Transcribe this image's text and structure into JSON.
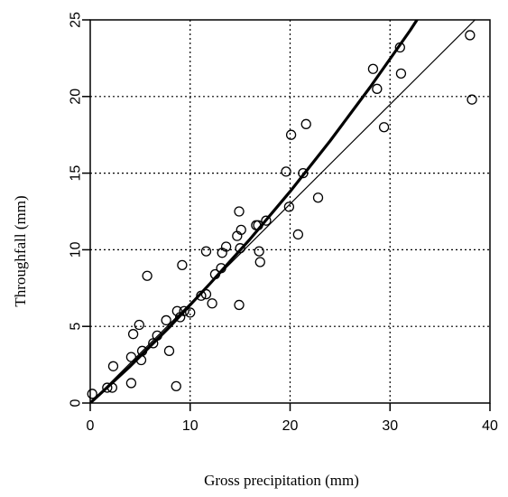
{
  "chart_data": {
    "type": "scatter",
    "xlabel": "Gross precipitation (mm)",
    "ylabel": "Throughfall (mm)",
    "xlim": [
      0,
      40
    ],
    "ylim": [
      0,
      25
    ],
    "x_ticks": [
      0,
      10,
      20,
      30,
      40
    ],
    "y_ticks": [
      0,
      5,
      10,
      15,
      20,
      25
    ],
    "x_tick_labels": [
      "0",
      "10",
      "20",
      "30",
      "40"
    ],
    "y_tick_labels": [
      "0",
      "5",
      "10",
      "15",
      "20",
      "25"
    ],
    "grid": true,
    "grid_style": "dotted",
    "legend": "none",
    "points": [
      [
        0.2,
        0.6
      ],
      [
        1.7,
        1.0
      ],
      [
        2.2,
        1.0
      ],
      [
        2.3,
        2.4
      ],
      [
        4.1,
        3.0
      ],
      [
        4.1,
        1.3
      ],
      [
        4.3,
        4.5
      ],
      [
        4.9,
        5.1
      ],
      [
        5.1,
        2.8
      ],
      [
        5.2,
        3.4
      ],
      [
        5.7,
        8.3
      ],
      [
        6.3,
        3.9
      ],
      [
        6.7,
        4.4
      ],
      [
        7.6,
        5.4
      ],
      [
        7.9,
        3.4
      ],
      [
        8.6,
        1.1
      ],
      [
        8.7,
        6.0
      ],
      [
        9.0,
        5.6
      ],
      [
        9.2,
        9.0
      ],
      [
        9.4,
        6.0
      ],
      [
        10.0,
        5.9
      ],
      [
        11.1,
        7.0
      ],
      [
        11.6,
        7.1
      ],
      [
        11.6,
        9.9
      ],
      [
        12.2,
        6.5
      ],
      [
        12.5,
        8.4
      ],
      [
        13.1,
        8.8
      ],
      [
        13.2,
        9.8
      ],
      [
        13.6,
        10.2
      ],
      [
        14.7,
        10.9
      ],
      [
        14.9,
        12.5
      ],
      [
        14.9,
        6.4
      ],
      [
        15.0,
        10.1
      ],
      [
        15.1,
        11.3
      ],
      [
        16.6,
        11.6
      ],
      [
        16.8,
        11.6
      ],
      [
        16.9,
        9.9
      ],
      [
        17.0,
        9.2
      ],
      [
        17.6,
        11.9
      ],
      [
        19.6,
        15.1
      ],
      [
        19.9,
        12.8
      ],
      [
        20.1,
        17.5
      ],
      [
        20.8,
        11.0
      ],
      [
        21.3,
        15.0
      ],
      [
        21.6,
        18.2
      ],
      [
        22.8,
        13.4
      ],
      [
        28.3,
        21.8
      ],
      [
        28.7,
        20.5
      ],
      [
        29.4,
        18.0
      ],
      [
        31.0,
        23.2
      ],
      [
        31.1,
        21.5
      ],
      [
        38.0,
        24.0
      ],
      [
        38.2,
        19.8
      ]
    ],
    "series": [
      {
        "style": "thick",
        "x": [
          0,
          4,
          8,
          12,
          16,
          20,
          24,
          28,
          32,
          33
        ],
        "y": [
          0,
          2.4,
          5.0,
          7.8,
          10.7,
          13.8,
          17.1,
          20.6,
          24.3,
          25.3
        ]
      },
      {
        "style": "thin",
        "x": [
          0,
          38.5
        ],
        "y": [
          0,
          25
        ]
      }
    ]
  }
}
